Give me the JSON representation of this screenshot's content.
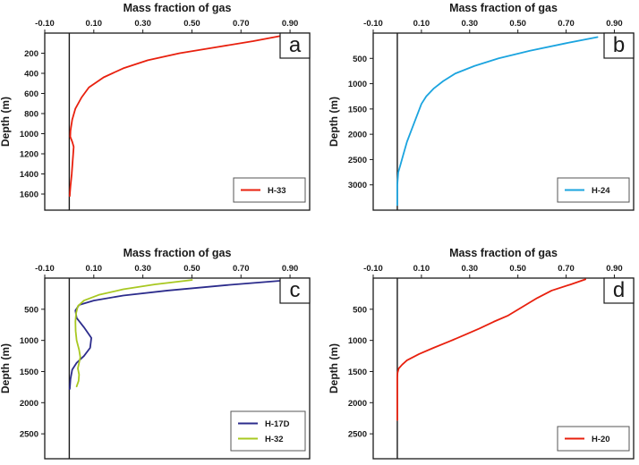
{
  "chart_data": [
    {
      "type": "line",
      "panel": "a",
      "title": "Mass fraction of gas",
      "xlabel": "Mass fraction of gas",
      "ylabel": "Depth (m)",
      "xlim": [
        -0.1,
        0.98
      ],
      "ylim": [
        0,
        1760
      ],
      "xticks": [
        -0.1,
        0.1,
        0.3,
        0.5,
        0.7,
        0.9
      ],
      "xtick_labels": [
        "-0.10",
        "0.10",
        "0.30",
        "0.50",
        "0.70",
        "0.90"
      ],
      "yticks": [
        200,
        400,
        600,
        800,
        1000,
        1200,
        1400,
        1600
      ],
      "ytick_labels": [
        "200",
        "400",
        "600",
        "800",
        "1000",
        "1200",
        "1400",
        "1600"
      ],
      "zero_line": 0,
      "legend": "bottom-right",
      "series": [
        {
          "name": "H-33",
          "color": "#e8200e",
          "x": [
            0.88,
            0.75,
            0.6,
            0.45,
            0.32,
            0.22,
            0.14,
            0.08,
            0.05,
            0.025,
            0.012,
            0.005,
            0.004,
            0.012,
            0.018,
            0.016,
            0.013,
            0.01,
            0.008,
            0.005,
            0.003,
            0.002
          ],
          "y": [
            20,
            80,
            140,
            200,
            270,
            350,
            440,
            540,
            640,
            750,
            860,
            970,
            1030,
            1080,
            1130,
            1200,
            1300,
            1400,
            1450,
            1520,
            1580,
            1620
          ]
        }
      ]
    },
    {
      "type": "line",
      "panel": "b",
      "title": "Mass fraction of gas",
      "xlabel": "Mass fraction of gas",
      "ylabel": "Depth (m)",
      "xlim": [
        -0.1,
        0.98
      ],
      "ylim": [
        0,
        3500
      ],
      "xticks": [
        -0.1,
        0.1,
        0.3,
        0.5,
        0.7,
        0.9
      ],
      "xtick_labels": [
        "-0.10",
        "0.10",
        "0.30",
        "0.50",
        "0.70",
        "0.90"
      ],
      "yticks": [
        500,
        1000,
        1500,
        2000,
        2500,
        3000
      ],
      "ytick_labels": [
        "500",
        "1000",
        "1500",
        "2000",
        "2500",
        "3000"
      ],
      "zero_line": 0,
      "legend": "bottom-right",
      "series": [
        {
          "name": "H-24",
          "color": "#1ba4df",
          "x": [
            0.83,
            0.7,
            0.55,
            0.42,
            0.32,
            0.24,
            0.19,
            0.15,
            0.12,
            0.1,
            0.08,
            0.06,
            0.04,
            0.025,
            0.012,
            0.004,
            0.0,
            0.0
          ],
          "y": [
            80,
            200,
            350,
            500,
            650,
            800,
            950,
            1100,
            1250,
            1400,
            1650,
            1900,
            2150,
            2400,
            2620,
            2750,
            3000,
            3400
          ]
        }
      ]
    },
    {
      "type": "line",
      "panel": "c",
      "title": "Mass fraction of gas",
      "xlabel": "Mass fraction of gas",
      "ylabel": "Depth (m)",
      "xlim": [
        -0.1,
        0.98
      ],
      "ylim": [
        0,
        2900
      ],
      "xticks": [
        -0.1,
        0.1,
        0.3,
        0.5,
        0.7,
        0.9
      ],
      "xtick_labels": [
        "-0.10",
        "0.10",
        "0.30",
        "0.50",
        "0.70",
        "0.90"
      ],
      "yticks": [
        500,
        1000,
        1500,
        2000,
        2500
      ],
      "ytick_labels": [
        "500",
        "1000",
        "1500",
        "2000",
        "2500"
      ],
      "zero_line": 0,
      "legend": "bottom-right",
      "series": [
        {
          "name": "H-17D",
          "color": "#2c2c8c",
          "x": [
            0.9,
            0.65,
            0.4,
            0.22,
            0.1,
            0.04,
            0.025,
            0.03,
            0.06,
            0.09,
            0.085,
            0.06,
            0.03,
            0.012,
            0.005,
            0.002
          ],
          "y": [
            30,
            110,
            200,
            280,
            360,
            430,
            520,
            640,
            790,
            960,
            1120,
            1250,
            1360,
            1470,
            1620,
            1780
          ]
        },
        {
          "name": "H-32",
          "color": "#a8c821",
          "x": [
            0.5,
            0.35,
            0.22,
            0.12,
            0.06,
            0.035,
            0.028,
            0.025,
            0.026,
            0.03,
            0.04,
            0.045,
            0.04,
            0.035,
            0.04,
            0.038,
            0.03
          ],
          "y": [
            30,
            100,
            180,
            270,
            360,
            450,
            560,
            700,
            850,
            1000,
            1150,
            1270,
            1360,
            1450,
            1550,
            1650,
            1740
          ]
        }
      ]
    },
    {
      "type": "line",
      "panel": "d",
      "title": "Mass fraction of gas",
      "xlabel": "Mass fraction of gas",
      "ylabel": "Depth (m)",
      "xlim": [
        -0.1,
        0.98
      ],
      "ylim": [
        0,
        2900
      ],
      "xticks": [
        -0.1,
        0.1,
        0.3,
        0.5,
        0.7,
        0.9
      ],
      "xtick_labels": [
        "-0.10",
        "0.10",
        "0.30",
        "0.50",
        "0.70",
        "0.90"
      ],
      "yticks": [
        500,
        1000,
        1500,
        2000,
        2500
      ],
      "ytick_labels": [
        "500",
        "1000",
        "1500",
        "2000",
        "2500"
      ],
      "zero_line": 0,
      "legend": "bottom-right",
      "series": [
        {
          "name": "H-20",
          "color": "#e8200e",
          "x": [
            0.78,
            0.72,
            0.64,
            0.58,
            0.52,
            0.46,
            0.4,
            0.34,
            0.28,
            0.22,
            0.15,
            0.09,
            0.04,
            0.02,
            0.006,
            0.001,
            0.0,
            0.0
          ],
          "y": [
            20,
            100,
            200,
            320,
            460,
            600,
            700,
            810,
            910,
            1010,
            1120,
            1220,
            1320,
            1390,
            1450,
            1520,
            1600,
            2280
          ]
        }
      ]
    }
  ]
}
